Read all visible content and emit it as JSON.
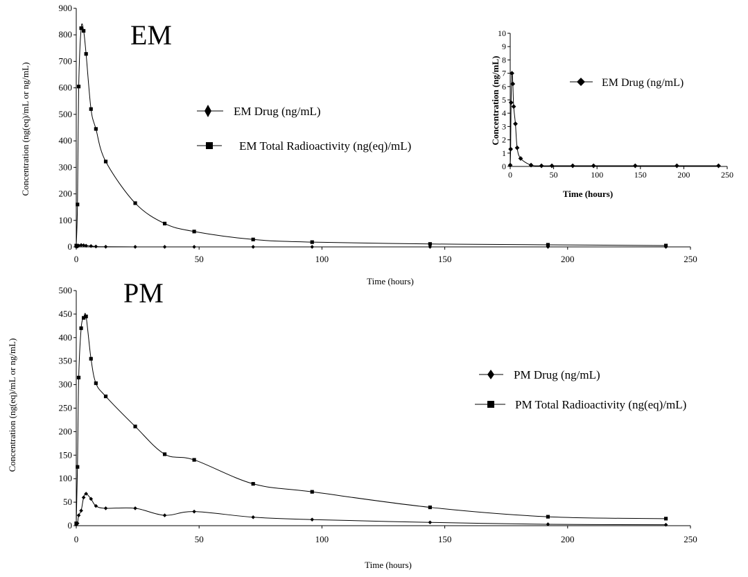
{
  "chart_data": [
    {
      "type": "line",
      "title": "EM",
      "xlabel": "Time (hours)",
      "ylabel": "Concentration (ng(eq)/mL or ng/mL)",
      "xlim": [
        0,
        250
      ],
      "ylim": [
        0,
        900
      ],
      "xticks": [
        0,
        50,
        100,
        150,
        200,
        250
      ],
      "yticks": [
        0,
        100,
        200,
        300,
        400,
        500,
        600,
        700,
        800,
        900
      ],
      "grid": false,
      "legend_position": "center-left",
      "series": [
        {
          "name": "EM Drug (ng/mL)",
          "marker": "diamond",
          "x": [
            0,
            0.5,
            1,
            2,
            3,
            4,
            6,
            8,
            12,
            24,
            36,
            48,
            72,
            96,
            144,
            192,
            240
          ],
          "y": [
            0.1,
            1.3,
            4.8,
            7,
            6.2,
            4.5,
            3.2,
            1.4,
            0.6,
            0.1,
            0.05,
            0.05,
            0.05,
            0.05,
            0.05,
            0.05,
            0.05
          ]
        },
        {
          "name": "EM Total Radioactivity (ng(eq)/mL)",
          "marker": "square",
          "x": [
            0,
            0.5,
            1,
            2,
            3,
            4,
            6,
            8,
            12,
            24,
            36,
            48,
            72,
            96,
            144,
            192,
            240
          ],
          "y": [
            5,
            160,
            605,
            825,
            815,
            728,
            520,
            445,
            322,
            165,
            88,
            58,
            28,
            18,
            11,
            8,
            5
          ]
        }
      ]
    },
    {
      "type": "line",
      "title": "",
      "inset": true,
      "xlabel": "Time (hours)",
      "ylabel": "Concentration (ng/mL)",
      "xlim": [
        0,
        250
      ],
      "ylim": [
        0,
        10
      ],
      "xticks": [
        0,
        50,
        100,
        150,
        200,
        250
      ],
      "yticks": [
        0,
        1,
        2,
        3,
        4,
        5,
        6,
        7,
        8,
        9,
        10
      ],
      "grid": false,
      "legend_position": "top-right",
      "series": [
        {
          "name": "EM Drug (ng/mL)",
          "marker": "diamond",
          "x": [
            0,
            0.5,
            1,
            2,
            3,
            4,
            6,
            8,
            12,
            24,
            36,
            48,
            72,
            96,
            144,
            192,
            240
          ],
          "y": [
            0.1,
            1.3,
            4.8,
            7,
            6.2,
            4.5,
            3.2,
            1.4,
            0.6,
            0.1,
            0.05,
            0.05,
            0.05,
            0.05,
            0.05,
            0.05,
            0.05
          ]
        }
      ]
    },
    {
      "type": "line",
      "title": "PM",
      "xlabel": "Time (hours)",
      "ylabel": "Concentration (ng(eq)/mL or ng/mL)",
      "xlim": [
        0,
        250
      ],
      "ylim": [
        0,
        500
      ],
      "xticks": [
        0,
        50,
        100,
        150,
        200,
        250
      ],
      "yticks": [
        0,
        50,
        100,
        150,
        200,
        250,
        300,
        350,
        400,
        450,
        500
      ],
      "grid": false,
      "legend_position": "center-right",
      "series": [
        {
          "name": "PM Drug (ng/mL)",
          "marker": "diamond",
          "x": [
            0,
            0.5,
            1,
            2,
            3,
            4,
            6,
            8,
            12,
            24,
            36,
            48,
            72,
            96,
            144,
            192,
            240
          ],
          "y": [
            2,
            5,
            22,
            32,
            60,
            68,
            57,
            42,
            37,
            37,
            22,
            30,
            18,
            13,
            7,
            3,
            2
          ]
        },
        {
          "name": "PM Total Radioactivity (ng(eq)/mL)",
          "marker": "square",
          "x": [
            0,
            0.5,
            1,
            2,
            3,
            4,
            6,
            8,
            12,
            24,
            36,
            48,
            72,
            96,
            144,
            192,
            240
          ],
          "y": [
            5,
            125,
            315,
            420,
            442,
            445,
            355,
            303,
            275,
            211,
            152,
            140,
            89,
            72,
            39,
            19,
            15
          ]
        }
      ]
    }
  ]
}
